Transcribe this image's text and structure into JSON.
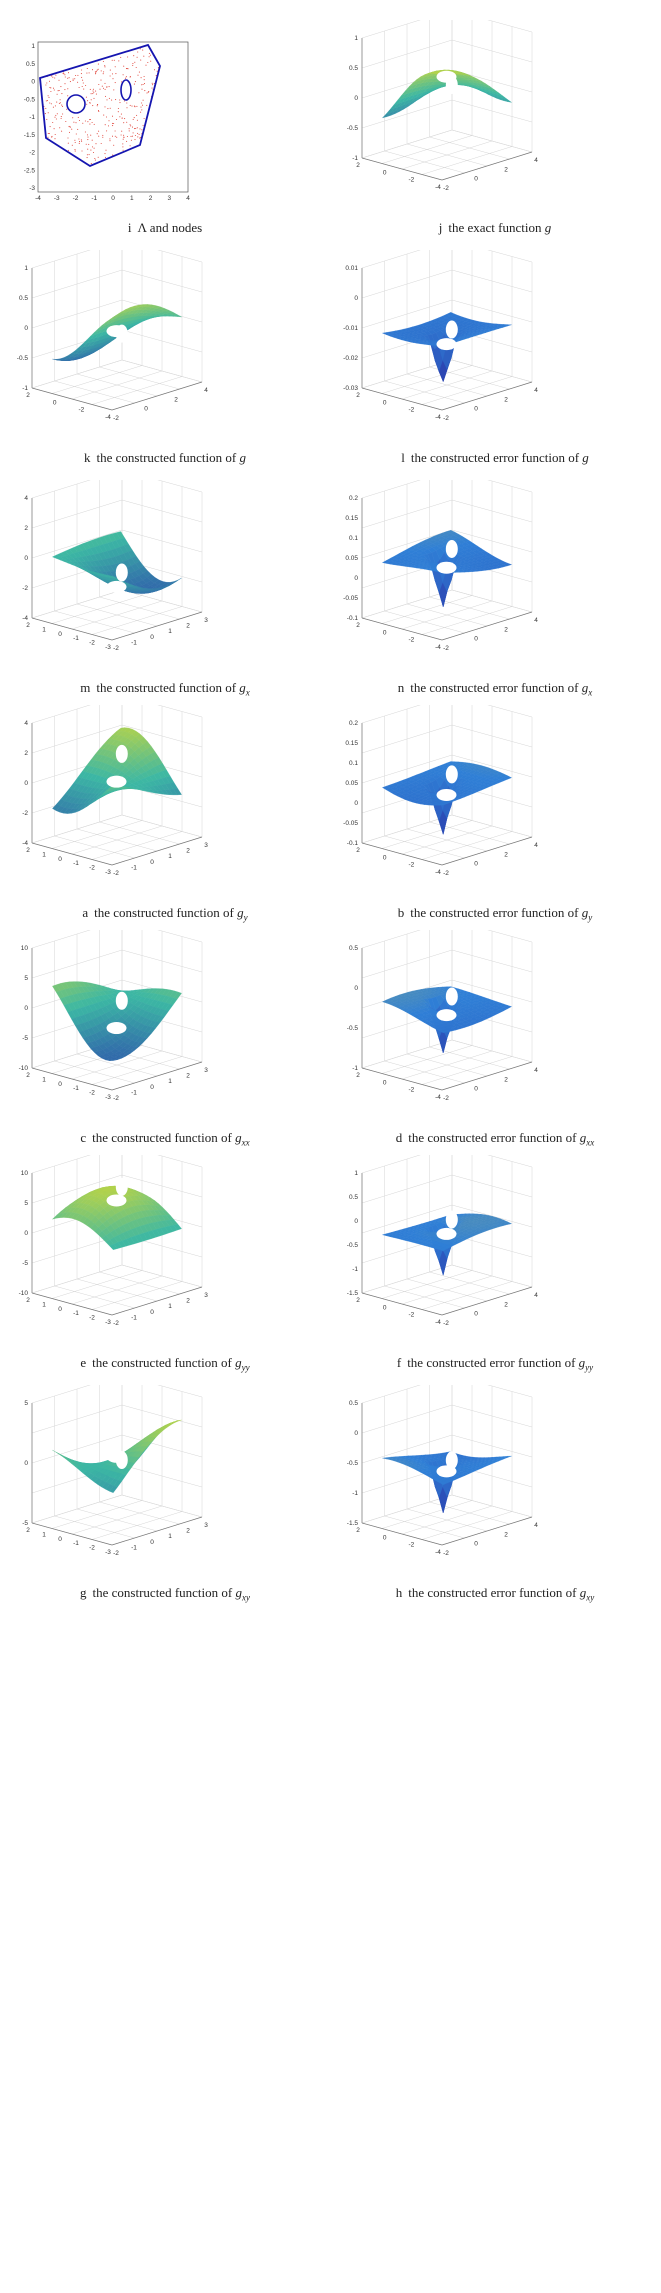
{
  "panels": [
    {
      "letter": "i",
      "text": "Λ and nodes",
      "math": ""
    },
    {
      "letter": "j",
      "text": "the exact function",
      "math": "g"
    },
    {
      "letter": "k",
      "text": "the constructed function of",
      "math": "g"
    },
    {
      "letter": "l",
      "text": "the constructed error function of",
      "math": "g"
    },
    {
      "letter": "m",
      "text": "the constructed function of",
      "math": "gx"
    },
    {
      "letter": "n",
      "text": "the constructed error function of",
      "math": "gx"
    },
    {
      "letter": "a",
      "text": "the constructed function of",
      "math": "gy"
    },
    {
      "letter": "b",
      "text": "the constructed error function of",
      "math": "gy"
    },
    {
      "letter": "c",
      "text": "the constructed function of",
      "math": "gxx"
    },
    {
      "letter": "d",
      "text": "the constructed error function of",
      "math": "gxx"
    },
    {
      "letter": "e",
      "text": "the constructed function of",
      "math": "gyy"
    },
    {
      "letter": "f",
      "text": "the constructed error function of",
      "math": "gyy"
    },
    {
      "letter": "g",
      "text": "the constructed function of",
      "math": "gxy"
    },
    {
      "letter": "h",
      "text": "the constructed error function of",
      "math": "gxy"
    }
  ],
  "ticks": {
    "i": {
      "y": [
        "1",
        "0.5",
        "0",
        "-0.5",
        "-1",
        "-1.5",
        "-2",
        "-2.5",
        "-3"
      ],
      "x": [
        "-4",
        "-3",
        "-2",
        "-1",
        "0",
        "1",
        "2",
        "3",
        "4"
      ]
    },
    "j": {
      "z": [
        "1",
        "0.5",
        "0",
        "-0.5",
        "-1"
      ],
      "left": [
        "2",
        "0",
        "-2",
        "-4"
      ],
      "right": [
        "-2",
        "0",
        "2",
        "4"
      ]
    },
    "k": {
      "z": [
        "1",
        "0.5",
        "0",
        "-0.5",
        "-1"
      ],
      "left": [
        "2",
        "0",
        "-2",
        "-4"
      ],
      "right": [
        "-2",
        "0",
        "2",
        "4"
      ]
    },
    "l": {
      "z": [
        "0.01",
        "0",
        "-0.01",
        "-0.02",
        "-0.03"
      ],
      "left": [
        "2",
        "0",
        "-2",
        "-4"
      ],
      "right": [
        "-2",
        "0",
        "2",
        "4"
      ]
    },
    "m": {
      "z": [
        "4",
        "2",
        "0",
        "-2",
        "-4"
      ],
      "left": [
        "2",
        "1",
        "0",
        "-1",
        "-2",
        "-3"
      ],
      "right": [
        "-2",
        "-1",
        "0",
        "1",
        "2",
        "3"
      ]
    },
    "n": {
      "z": [
        "0.2",
        "0.15",
        "0.1",
        "0.05",
        "0",
        "-0.05",
        "-0.1"
      ],
      "left": [
        "2",
        "0",
        "-2",
        "-4"
      ],
      "right": [
        "-2",
        "0",
        "2",
        "4"
      ]
    },
    "a": {
      "z": [
        "4",
        "2",
        "0",
        "-2",
        "-4"
      ],
      "left": [
        "2",
        "1",
        "0",
        "-1",
        "-2",
        "-3"
      ],
      "right": [
        "-2",
        "-1",
        "0",
        "1",
        "2",
        "3"
      ]
    },
    "b": {
      "z": [
        "0.2",
        "0.15",
        "0.1",
        "0.05",
        "0",
        "-0.05",
        "-0.1"
      ],
      "left": [
        "2",
        "0",
        "-2",
        "-4"
      ],
      "right": [
        "-2",
        "0",
        "2",
        "4"
      ]
    },
    "c": {
      "z": [
        "10",
        "5",
        "0",
        "-5",
        "-10"
      ],
      "left": [
        "2",
        "1",
        "0",
        "-1",
        "-2",
        "-3"
      ],
      "right": [
        "-2",
        "-1",
        "0",
        "1",
        "2",
        "3"
      ]
    },
    "d": {
      "z": [
        "0.5",
        "0",
        "-0.5",
        "-1"
      ],
      "left": [
        "2",
        "0",
        "-2",
        "-4"
      ],
      "right": [
        "-2",
        "0",
        "2",
        "4"
      ]
    },
    "e": {
      "z": [
        "10",
        "5",
        "0",
        "-5",
        "-10"
      ],
      "left": [
        "2",
        "1",
        "0",
        "-1",
        "-2",
        "-3"
      ],
      "right": [
        "-2",
        "-1",
        "0",
        "1",
        "2",
        "3"
      ]
    },
    "f": {
      "z": [
        "1",
        "0.5",
        "0",
        "-0.5",
        "-1",
        "-1.5"
      ],
      "left": [
        "2",
        "0",
        "-2",
        "-4"
      ],
      "right": [
        "-2",
        "0",
        "2",
        "4"
      ]
    },
    "g": {
      "z": [
        "5",
        "0",
        "-5"
      ],
      "left": [
        "2",
        "1",
        "0",
        "-1",
        "-2",
        "-3"
      ],
      "right": [
        "-2",
        "-1",
        "0",
        "1",
        "2",
        "3"
      ]
    },
    "h": {
      "z": [
        "0.5",
        "0",
        "-0.5",
        "-1",
        "-1.5"
      ],
      "left": [
        "2",
        "0",
        "-2",
        "-4"
      ],
      "right": [
        "-2",
        "0",
        "2",
        "4"
      ]
    }
  },
  "colors": {
    "boundary": "#1515b0",
    "nodes": "#e0483e",
    "surface_high": "#f5e11a",
    "surface_mid": "#3cb7a4",
    "surface_low": "#2b3fae",
    "error_surface": "#2f7fd6",
    "axis_grid": "#d6d6d6"
  }
}
